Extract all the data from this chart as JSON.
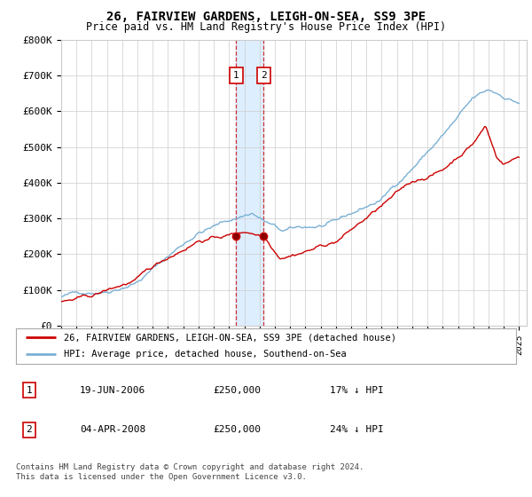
{
  "title": "26, FAIRVIEW GARDENS, LEIGH-ON-SEA, SS9 3PE",
  "subtitle": "Price paid vs. HM Land Registry's House Price Index (HPI)",
  "ylim": [
    0,
    800000
  ],
  "yticks": [
    0,
    100000,
    200000,
    300000,
    400000,
    500000,
    600000,
    700000,
    800000
  ],
  "sale1_date": 2006.47,
  "sale1_price": 250000,
  "sale2_date": 2008.26,
  "sale2_price": 250000,
  "legend_line1": "26, FAIRVIEW GARDENS, LEIGH-ON-SEA, SS9 3PE (detached house)",
  "legend_line2": "HPI: Average price, detached house, Southend-on-Sea",
  "table_row1_num": "1",
  "table_row1_date": "19-JUN-2006",
  "table_row1_price": "£250,000",
  "table_row1_hpi": "17% ↓ HPI",
  "table_row2_num": "2",
  "table_row2_date": "04-APR-2008",
  "table_row2_price": "£250,000",
  "table_row2_hpi": "24% ↓ HPI",
  "footnote1": "Contains HM Land Registry data © Crown copyright and database right 2024.",
  "footnote2": "This data is licensed under the Open Government Licence v3.0.",
  "red_color": "#cc0000",
  "blue_color": "#7ab0d4",
  "highlight_color": "#ddeeff",
  "grid_color": "#cccccc",
  "background_color": "#ffffff"
}
